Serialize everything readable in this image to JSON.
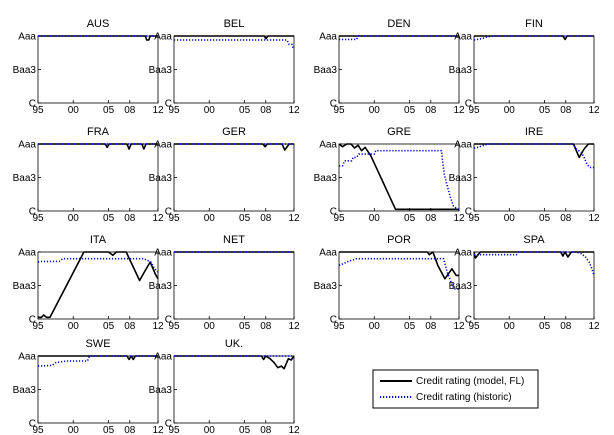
{
  "chart_data": {
    "type": "line",
    "y_scale": "credit rating (C = lowest, Aaa = highest)",
    "ylim": [
      0,
      2
    ],
    "y_ticks": [
      {
        "value": 2,
        "label": "Aaa"
      },
      {
        "value": 1,
        "label": "Baa3"
      },
      {
        "value": 0,
        "label": "C"
      }
    ],
    "xlim": [
      1995,
      2012
    ],
    "x_ticks": [
      {
        "value": 1995,
        "label": "95"
      },
      {
        "value": 2000,
        "label": "00"
      },
      {
        "value": 2005,
        "label": "05"
      },
      {
        "value": 2008,
        "label": "08"
      },
      {
        "value": 2012,
        "label": "12"
      }
    ],
    "legend": {
      "placement": "bottom-right",
      "entries": [
        {
          "label": "Credit rating (model, FL)",
          "color": "#000000",
          "style": "solid"
        },
        {
          "label": "Credit rating (historic)",
          "color": "#0000cc",
          "style": "dotted"
        }
      ]
    },
    "panels": [
      {
        "title": "AUS",
        "model": [
          [
            1995,
            2
          ],
          [
            2010.2,
            2
          ],
          [
            2010.4,
            1.88
          ],
          [
            2010.7,
            1.88
          ],
          [
            2010.9,
            2
          ],
          [
            2012,
            2
          ]
        ],
        "historic": [
          [
            1995,
            2
          ],
          [
            2012,
            2
          ]
        ]
      },
      {
        "title": "BEL",
        "model": [
          [
            1995,
            2
          ],
          [
            2007.8,
            2
          ],
          [
            2008,
            1.92
          ],
          [
            2008.3,
            2
          ],
          [
            2012,
            2
          ]
        ],
        "historic": [
          [
            1995,
            1.88
          ],
          [
            2011,
            1.88
          ],
          [
            2011.3,
            1.75
          ],
          [
            2011.7,
            1.75
          ],
          [
            2011.9,
            1.62
          ],
          [
            2012,
            1.62
          ]
        ]
      },
      {
        "title": "DEN",
        "model": [
          [
            1995,
            2
          ],
          [
            2012,
            2
          ]
        ],
        "historic": [
          [
            1995,
            1.9
          ],
          [
            1997.5,
            1.9
          ],
          [
            1997.7,
            2
          ],
          [
            2012,
            2
          ]
        ]
      },
      {
        "title": "FIN",
        "model": [
          [
            1995,
            2
          ],
          [
            2007.6,
            2
          ],
          [
            2007.9,
            1.9
          ],
          [
            2008.2,
            2
          ],
          [
            2012,
            2
          ]
        ],
        "historic": [
          [
            1995,
            1.88
          ],
          [
            1996,
            1.92
          ],
          [
            1997,
            1.98
          ],
          [
            1998,
            2
          ],
          [
            2012,
            2
          ]
        ]
      },
      {
        "title": "FRA",
        "model": [
          [
            1995,
            2
          ],
          [
            2004.5,
            2
          ],
          [
            2004.8,
            1.9
          ],
          [
            2005.1,
            2
          ],
          [
            2007.6,
            2
          ],
          [
            2007.9,
            1.85
          ],
          [
            2008.2,
            2
          ],
          [
            2009.7,
            2
          ],
          [
            2010,
            1.85
          ],
          [
            2010.3,
            2
          ],
          [
            2012,
            2
          ]
        ],
        "historic": [
          [
            1995,
            2
          ],
          [
            2012,
            2
          ]
        ]
      },
      {
        "title": "GER",
        "model": [
          [
            1995,
            2
          ],
          [
            2007.6,
            2
          ],
          [
            2007.9,
            1.92
          ],
          [
            2008.2,
            2
          ],
          [
            2010.3,
            2
          ],
          [
            2010.7,
            1.82
          ],
          [
            2011.3,
            2
          ],
          [
            2012,
            2
          ]
        ],
        "historic": [
          [
            1995,
            2
          ],
          [
            2012,
            2
          ]
        ]
      },
      {
        "title": "GRE",
        "model": [
          [
            1995,
            2
          ],
          [
            1995.5,
            1.92
          ],
          [
            1996.1,
            2
          ],
          [
            1996.7,
            2
          ],
          [
            1997.2,
            1.88
          ],
          [
            1997.7,
            1.96
          ],
          [
            1998.2,
            1.8
          ],
          [
            1998.7,
            1.9
          ],
          [
            1999.5,
            1.65
          ],
          [
            2003,
            0.05
          ],
          [
            2012,
            0.05
          ]
        ],
        "historic": [
          [
            1995,
            1.35
          ],
          [
            1995.5,
            1.35
          ],
          [
            1995.8,
            1.5
          ],
          [
            1996.8,
            1.5
          ],
          [
            1997,
            1.6
          ],
          [
            1997.5,
            1.6
          ],
          [
            1997.8,
            1.7
          ],
          [
            2000,
            1.7
          ],
          [
            2000.2,
            1.8
          ],
          [
            2007,
            1.8
          ],
          [
            2009.5,
            1.8
          ],
          [
            2009.9,
            1.1
          ],
          [
            2010.4,
            0.7
          ],
          [
            2010.8,
            0.4
          ],
          [
            2011.2,
            0.15
          ],
          [
            2011.8,
            0.05
          ],
          [
            2012,
            0.05
          ]
        ]
      },
      {
        "title": "IRE",
        "model": [
          [
            1995,
            2
          ],
          [
            2009.1,
            2
          ],
          [
            2009.9,
            1.6
          ],
          [
            2010.6,
            1.85
          ],
          [
            2011.2,
            2
          ],
          [
            2012,
            2
          ]
        ],
        "historic": [
          [
            1995,
            1.88
          ],
          [
            1995.6,
            1.9
          ],
          [
            1996.2,
            1.95
          ],
          [
            1997,
            2
          ],
          [
            2009,
            2
          ],
          [
            2009.5,
            1.85
          ],
          [
            2010.2,
            1.75
          ],
          [
            2010.6,
            1.6
          ],
          [
            2011,
            1.4
          ],
          [
            2011.4,
            1.3
          ],
          [
            2012,
            1.3
          ]
        ]
      },
      {
        "title": "ITA",
        "model": [
          [
            1995,
            0.05
          ],
          [
            1995.5,
            0.05
          ],
          [
            1995.8,
            0.12
          ],
          [
            1996.2,
            0.05
          ],
          [
            1996.7,
            0.05
          ],
          [
            2001.5,
            2
          ],
          [
            2005,
            2
          ],
          [
            2005.6,
            1.9
          ],
          [
            2006.1,
            2
          ],
          [
            2007.5,
            2
          ],
          [
            2009.4,
            1.15
          ],
          [
            2010.2,
            1.45
          ],
          [
            2010.9,
            1.7
          ],
          [
            2011.6,
            1.35
          ],
          [
            2012,
            1.2
          ]
        ],
        "historic": [
          [
            1995,
            1.7
          ],
          [
            1995.3,
            1.72
          ],
          [
            1998,
            1.72
          ],
          [
            1998.5,
            1.8
          ],
          [
            2008,
            1.8
          ],
          [
            2010,
            1.8
          ],
          [
            2011,
            1.7
          ],
          [
            2011.5,
            1.5
          ],
          [
            2012,
            1.4
          ]
        ]
      },
      {
        "title": "NET",
        "model": [
          [
            1995,
            2
          ],
          [
            2012,
            2
          ]
        ],
        "historic": [
          [
            1995,
            2
          ],
          [
            2012,
            2
          ]
        ]
      },
      {
        "title": "POR",
        "model": [
          [
            1995,
            2
          ],
          [
            2007.5,
            2
          ],
          [
            2007.8,
            1.92
          ],
          [
            2008.3,
            2
          ],
          [
            2009,
            1.6
          ],
          [
            2010,
            1.2
          ],
          [
            2011,
            1.5
          ],
          [
            2011.6,
            1.3
          ],
          [
            2012,
            1.3
          ]
        ],
        "historic": [
          [
            1995,
            1.6
          ],
          [
            1995.6,
            1.65
          ],
          [
            1996.3,
            1.72
          ],
          [
            1997.5,
            1.8
          ],
          [
            2007,
            1.8
          ],
          [
            2009.8,
            1.8
          ],
          [
            2010.4,
            1.35
          ],
          [
            2010.9,
            1.1
          ],
          [
            2011.3,
            0.9
          ],
          [
            2012,
            0.9
          ]
        ]
      },
      {
        "title": "SPA",
        "model": [
          [
            1995,
            2
          ],
          [
            1995.2,
            1.82
          ],
          [
            1995.9,
            2
          ],
          [
            2007.3,
            2
          ],
          [
            2007.6,
            1.88
          ],
          [
            2007.9,
            2
          ],
          [
            2008.3,
            1.85
          ],
          [
            2008.8,
            2
          ],
          [
            2012,
            2
          ]
        ],
        "historic": [
          [
            1995,
            1.92
          ],
          [
            2001,
            1.92
          ],
          [
            2001.3,
            2
          ],
          [
            2009.5,
            2
          ],
          [
            2010.2,
            1.95
          ],
          [
            2010.8,
            1.85
          ],
          [
            2011.3,
            1.7
          ],
          [
            2011.7,
            1.5
          ],
          [
            2012,
            1.3
          ]
        ]
      },
      {
        "title": "SWE",
        "model": [
          [
            1995,
            2
          ],
          [
            2007.6,
            2
          ],
          [
            2007.9,
            1.9
          ],
          [
            2008.2,
            2
          ],
          [
            2008.5,
            1.9
          ],
          [
            2008.8,
            2
          ],
          [
            2012,
            2
          ]
        ],
        "historic": [
          [
            1995,
            1.7
          ],
          [
            1997,
            1.72
          ],
          [
            1997.5,
            1.8
          ],
          [
            1999,
            1.85
          ],
          [
            2002,
            1.85
          ],
          [
            2002.3,
            2
          ],
          [
            2012,
            2
          ]
        ]
      },
      {
        "title": "UK.",
        "model": [
          [
            1995,
            2
          ],
          [
            2007.4,
            2
          ],
          [
            2007.7,
            1.9
          ],
          [
            2008,
            2
          ],
          [
            2008.6,
            1.92
          ],
          [
            2009.2,
            1.8
          ],
          [
            2009.7,
            1.65
          ],
          [
            2010.2,
            1.7
          ],
          [
            2010.6,
            1.62
          ],
          [
            2011.2,
            1.92
          ],
          [
            2011.6,
            1.88
          ],
          [
            2012,
            2
          ]
        ],
        "historic": [
          [
            1995,
            2
          ],
          [
            2012,
            2
          ]
        ]
      }
    ]
  }
}
